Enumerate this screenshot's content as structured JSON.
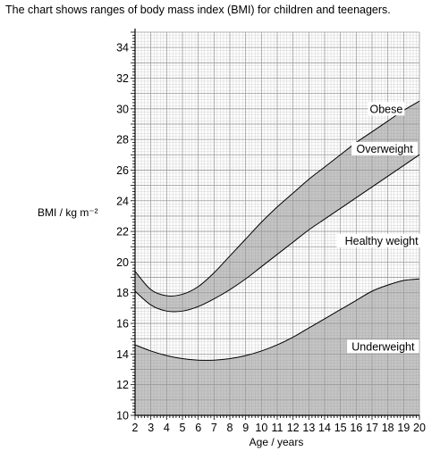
{
  "intro": "The chart shows ranges of body mass index (BMI) for children and teenagers.",
  "chart_data": {
    "type": "area",
    "xlabel": "Age / years",
    "ylabel": "BMI / kg m⁻²",
    "xlim": [
      2,
      20
    ],
    "ylim": [
      10,
      35
    ],
    "xticks": [
      2,
      3,
      4,
      5,
      6,
      7,
      8,
      9,
      10,
      11,
      12,
      13,
      14,
      15,
      16,
      17,
      18,
      19,
      20
    ],
    "yticks": [
      10,
      12,
      14,
      16,
      18,
      20,
      22,
      24,
      26,
      28,
      30,
      32,
      34
    ],
    "grid": true,
    "x": [
      2,
      3,
      4,
      5,
      6,
      7,
      8,
      9,
      10,
      11,
      12,
      13,
      14,
      15,
      16,
      17,
      18,
      19,
      20
    ],
    "boundaries": [
      {
        "values": [
          14.6,
          14.2,
          13.9,
          13.7,
          13.6,
          13.6,
          13.7,
          13.9,
          14.2,
          14.6,
          15.1,
          15.7,
          16.3,
          16.9,
          17.5,
          18.1,
          18.5,
          18.8,
          18.9
        ]
      },
      {
        "values": [
          18.1,
          17.2,
          16.8,
          16.8,
          17.1,
          17.6,
          18.2,
          18.9,
          19.7,
          20.5,
          21.3,
          22.1,
          22.8,
          23.5,
          24.2,
          24.9,
          25.6,
          26.3,
          27.0
        ]
      },
      {
        "values": [
          19.4,
          18.2,
          17.8,
          17.9,
          18.4,
          19.3,
          20.4,
          21.5,
          22.6,
          23.6,
          24.5,
          25.4,
          26.2,
          27.0,
          27.8,
          28.5,
          29.2,
          29.9,
          30.5
        ]
      }
    ],
    "regions": [
      "Underweight",
      "Healthy weight",
      "Overweight",
      "Obese"
    ]
  }
}
